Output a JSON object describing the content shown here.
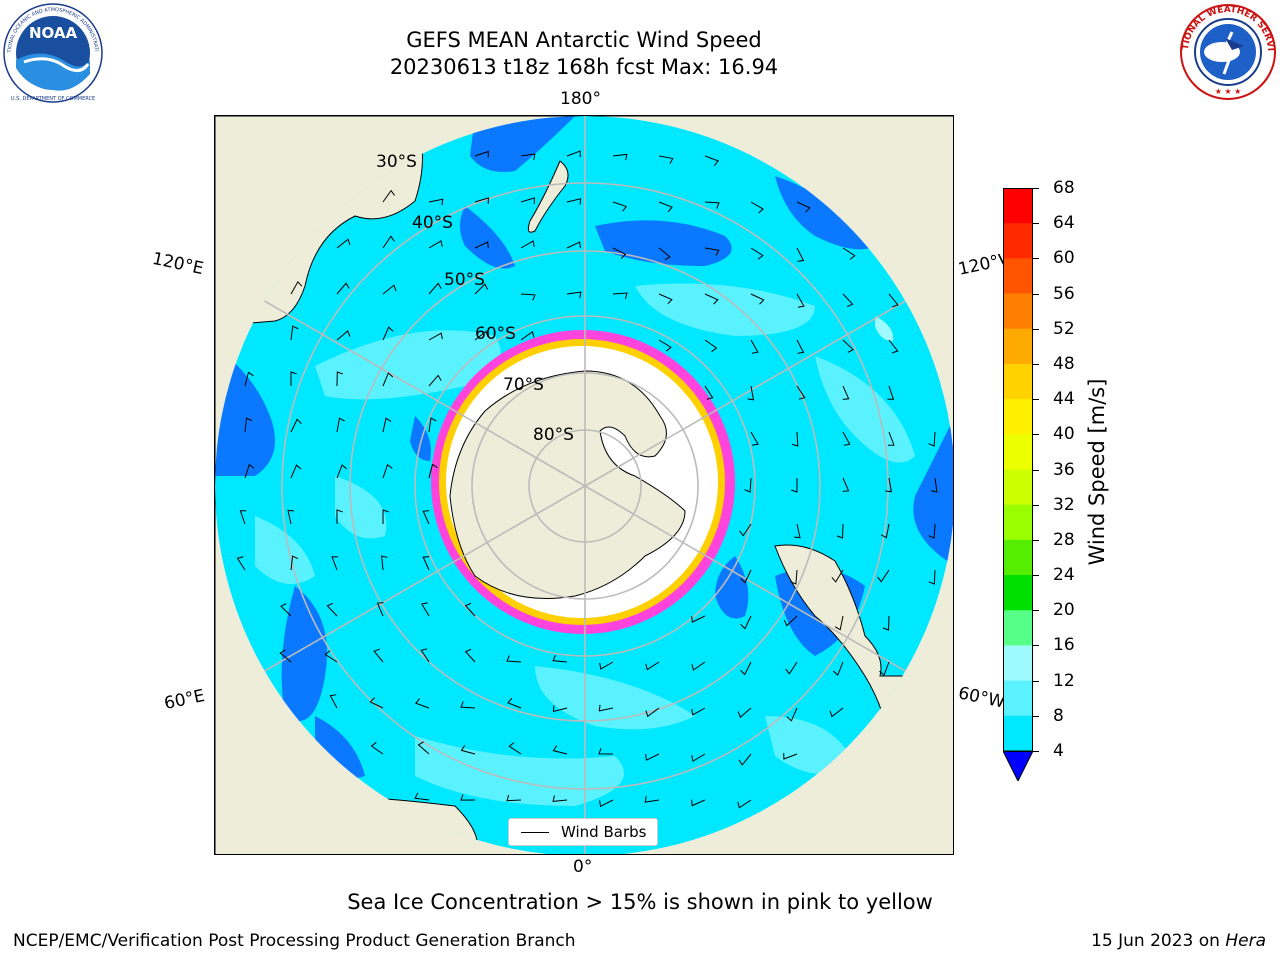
{
  "title": {
    "line1": "GEFS MEAN Antarctic Wind Speed",
    "line2": "20230613 t18z 168h fcst   Max: 16.94"
  },
  "logos": {
    "left": "noaa-logo",
    "right": "nws-logo",
    "left_text": "NOAA",
    "left_ring_text": "NATIONAL OCEANIC AND ATMOSPHERIC ADMINISTRATION",
    "left_bottom_text": "U.S. DEPARTMENT OF COMMERCE",
    "right_ring_text": "NATIONAL WEATHER SERVICE"
  },
  "map": {
    "projection": "south-polar-stereographic",
    "longitude_labels": [
      "180°",
      "120°E",
      "120°W",
      "60°E",
      "60°W",
      "0°"
    ],
    "latitude_labels": [
      "30°S",
      "40°S",
      "50°S",
      "60°S",
      "70°S",
      "80°S"
    ],
    "colors": {
      "land": "#ededda",
      "ice_white": "#ffffff",
      "ice_pink": "#ff44dd",
      "ice_yellow": "#ffd000",
      "gridline": "#bbbbbb",
      "coast": "#000000",
      "wind_4_8": "#0a78ff",
      "wind_8_12": "#00e8ff",
      "wind_12_16": "#5af2ff",
      "wind_16_20": "#9dfbff"
    },
    "legend_label": "Wind Barbs"
  },
  "colorbar": {
    "label": "Wind Speed [m/s]",
    "ticks": [
      "68",
      "64",
      "60",
      "56",
      "52",
      "48",
      "44",
      "40",
      "36",
      "32",
      "28",
      "24",
      "20",
      "16",
      "12",
      "8",
      "4"
    ],
    "colors": [
      "#ff0000",
      "#ff2a00",
      "#ff5500",
      "#ff8000",
      "#ffaa00",
      "#ffd200",
      "#fff000",
      "#eeff00",
      "#ccff00",
      "#99ff00",
      "#55ee00",
      "#00e000",
      "#55ff88",
      "#9dfbff",
      "#5af2ff",
      "#00e8ff",
      "#0a78ff"
    ],
    "extend_color": "#0000ff"
  },
  "footer": {
    "note": "Sea Ice Concentration > 15% is shown in pink to yellow",
    "credit": "NCEP/EMC/Verification Post Processing Product Generation Branch",
    "date": "15 Jun 2023 on ",
    "machine": "Hera"
  }
}
